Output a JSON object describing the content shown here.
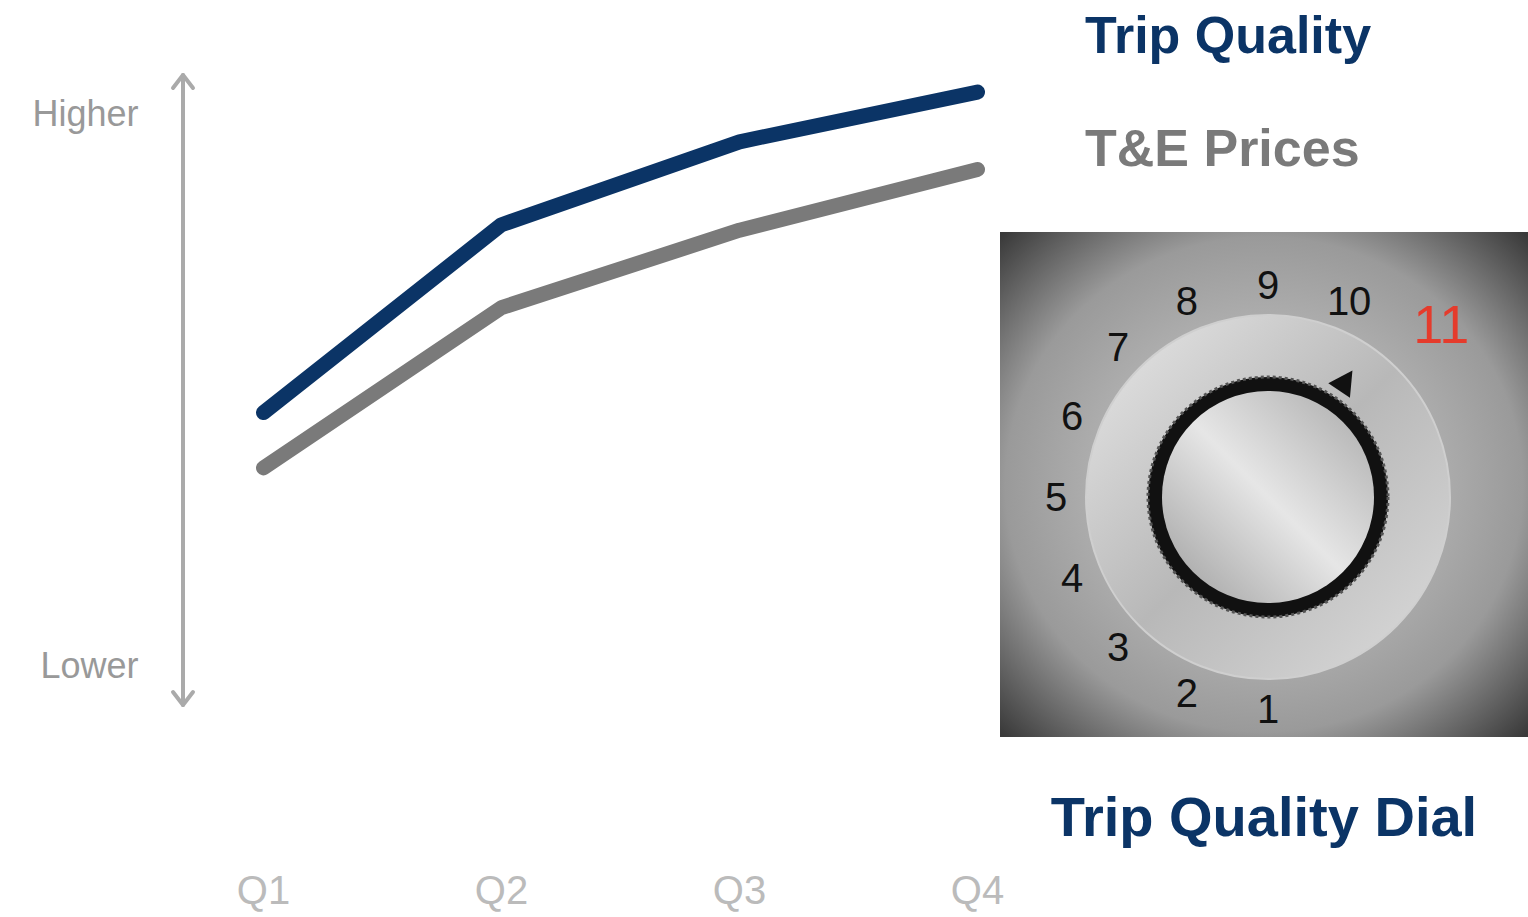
{
  "chart_data": {
    "type": "line",
    "categories": [
      "Q1",
      "Q2",
      "Q3",
      "Q4"
    ],
    "series": [
      {
        "name": "Trip Quality",
        "color": "#0b3466",
        "values": [
          46,
          80,
          95,
          104
        ]
      },
      {
        "name": "T&E Prices",
        "color": "#7a7a7a",
        "values": [
          36,
          65,
          79,
          90
        ]
      }
    ],
    "ylim": [
      -7,
      107
    ],
    "yticks": [
      {
        "value": 0,
        "label": "Lower"
      },
      {
        "value": 100,
        "label": "Higher"
      }
    ],
    "grid": false,
    "dial": {
      "title": "Trip Quality Dial",
      "labels": [
        1,
        2,
        3,
        4,
        5,
        6,
        7,
        8,
        9,
        10,
        11
      ],
      "highlight": 11,
      "value": 10.5
    }
  }
}
